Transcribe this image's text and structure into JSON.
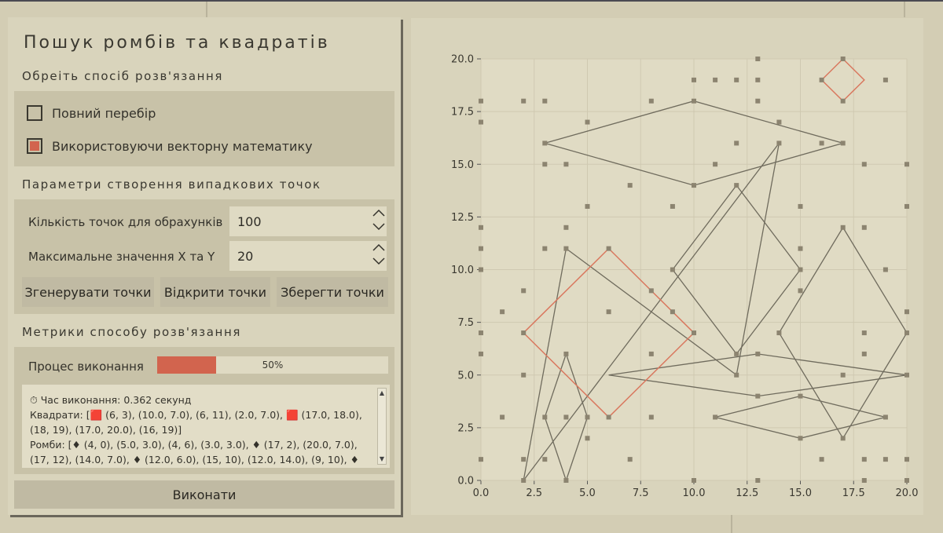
{
  "title": "Пошук ромбів та квадратів",
  "method": {
    "heading": "Обреіть спосіб розв'язання",
    "options": [
      {
        "label": "Повний перебір",
        "selected": false
      },
      {
        "label": "Використовуючи векторну математику",
        "selected": true
      }
    ]
  },
  "params": {
    "heading": "Параметри створення випадкових точок",
    "count_label": "Кількість точок для обрахунків",
    "count_value": "100",
    "max_label": "Максимальне значення X та Y",
    "max_value": "20",
    "generate_label": "Згенерувати точки",
    "open_label": "Відкрити точки",
    "save_label": "Зберегти точки"
  },
  "metrics": {
    "heading": "Метрики способу розв'язання",
    "progress_label": "Процес виконання",
    "progress_fraction": 0.5,
    "progress_text": "50%",
    "time_line": "⏱ Час виконання: 0.362 секунд",
    "squares_line": "Квадрати: [🟥 (6, 3), (10.0, 7.0), (6, 11), (2.0, 7.0), 🟥 (17.0, 18.0), (18, 19), (17.0, 20.0), (16, 19)]",
    "rhombs_line": "Ромби: [♦ (4, 0), (5.0, 3.0), (4, 6), (3.0, 3.0), ♦ (17, 2), (20.0, 7.0), (17, 12), (14.0, 7.0), ♦ (12.0, 6.0), (15, 10), (12.0, 14.0), (9, 10), ♦ (10.0"
  },
  "execute_label": "Виконати",
  "colors": {
    "accent": "#d2644e",
    "square_line": "#d9785f",
    "rhomb_line": "#6f6b5d",
    "point": "#8c8470"
  },
  "chart_data": {
    "type": "scatter",
    "xlim": [
      0,
      20
    ],
    "ylim": [
      0,
      20
    ],
    "xticks": [
      "0.0",
      "2.5",
      "5.0",
      "7.5",
      "10.0",
      "12.5",
      "15.0",
      "17.5",
      "20.0"
    ],
    "yticks": [
      "0.0",
      "2.5",
      "5.0",
      "7.5",
      "10.0",
      "12.5",
      "15.0",
      "17.5",
      "20.0"
    ],
    "grid": true,
    "points": [
      [
        0,
        18
      ],
      [
        0,
        17
      ],
      [
        0,
        12
      ],
      [
        0,
        11
      ],
      [
        0,
        10
      ],
      [
        0,
        7
      ],
      [
        0,
        6
      ],
      [
        0,
        1
      ],
      [
        1,
        8
      ],
      [
        1,
        3
      ],
      [
        2,
        18
      ],
      [
        2,
        9
      ],
      [
        2,
        7
      ],
      [
        2,
        5
      ],
      [
        2,
        1
      ],
      [
        2,
        0
      ],
      [
        3,
        18
      ],
      [
        3,
        16
      ],
      [
        3,
        15
      ],
      [
        3,
        11
      ],
      [
        3,
        3
      ],
      [
        3,
        1
      ],
      [
        4,
        15
      ],
      [
        4,
        12
      ],
      [
        4,
        11
      ],
      [
        4,
        6
      ],
      [
        4,
        3
      ],
      [
        4,
        0
      ],
      [
        5,
        17
      ],
      [
        5,
        13
      ],
      [
        5,
        3
      ],
      [
        5,
        2
      ],
      [
        6,
        11
      ],
      [
        6,
        8
      ],
      [
        6,
        3
      ],
      [
        7,
        14
      ],
      [
        7,
        1
      ],
      [
        8,
        18
      ],
      [
        8,
        9
      ],
      [
        8,
        6
      ],
      [
        8,
        3
      ],
      [
        9,
        13
      ],
      [
        9,
        10
      ],
      [
        9,
        8
      ],
      [
        10,
        19
      ],
      [
        10,
        18
      ],
      [
        10,
        14
      ],
      [
        10,
        7
      ],
      [
        10,
        0
      ],
      [
        11,
        19
      ],
      [
        11,
        15
      ],
      [
        11,
        3
      ],
      [
        12,
        19
      ],
      [
        12,
        16
      ],
      [
        12,
        14
      ],
      [
        12,
        6
      ],
      [
        12,
        5
      ],
      [
        13,
        20
      ],
      [
        13,
        19
      ],
      [
        13,
        18
      ],
      [
        13,
        6
      ],
      [
        13,
        4
      ],
      [
        13,
        0
      ],
      [
        14,
        17
      ],
      [
        14,
        16
      ],
      [
        14,
        7
      ],
      [
        15,
        13
      ],
      [
        15,
        11
      ],
      [
        15,
        10
      ],
      [
        15,
        9
      ],
      [
        15,
        4
      ],
      [
        15,
        2
      ],
      [
        16,
        19
      ],
      [
        16,
        16
      ],
      [
        16,
        1
      ],
      [
        17,
        20
      ],
      [
        17,
        18
      ],
      [
        17,
        16
      ],
      [
        17,
        12
      ],
      [
        17,
        5
      ],
      [
        17,
        2
      ],
      [
        18,
        15
      ],
      [
        18,
        12
      ],
      [
        18,
        7
      ],
      [
        18,
        6
      ],
      [
        18,
        1
      ],
      [
        18,
        0
      ],
      [
        19,
        19
      ],
      [
        19,
        10
      ],
      [
        19,
        3
      ],
      [
        19,
        1
      ],
      [
        20,
        15
      ],
      [
        20,
        13
      ],
      [
        20,
        8
      ],
      [
        20,
        7
      ],
      [
        20,
        5
      ],
      [
        20,
        1
      ],
      [
        20,
        0
      ]
    ],
    "squares": [
      [
        [
          6,
          3
        ],
        [
          10,
          7
        ],
        [
          6,
          11
        ],
        [
          2,
          7
        ]
      ],
      [
        [
          17,
          18
        ],
        [
          18,
          19
        ],
        [
          17,
          20
        ],
        [
          16,
          19
        ]
      ]
    ],
    "rhombs": [
      [
        [
          4,
          0
        ],
        [
          5,
          3
        ],
        [
          4,
          6
        ],
        [
          3,
          3
        ]
      ],
      [
        [
          17,
          2
        ],
        [
          20,
          7
        ],
        [
          17,
          12
        ],
        [
          14,
          7
        ]
      ],
      [
        [
          12,
          6
        ],
        [
          15,
          10
        ],
        [
          12,
          14
        ],
        [
          9,
          10
        ]
      ],
      [
        [
          3,
          16
        ],
        [
          10,
          18
        ],
        [
          17,
          16
        ],
        [
          10,
          14
        ]
      ],
      [
        [
          2,
          0
        ],
        [
          14,
          16
        ],
        [
          12,
          5
        ],
        [
          4,
          11
        ]
      ],
      [
        [
          6,
          5
        ],
        [
          13,
          6
        ],
        [
          20,
          5
        ],
        [
          13,
          4
        ]
      ],
      [
        [
          11,
          3
        ],
        [
          15,
          4
        ],
        [
          19,
          3
        ],
        [
          15,
          2
        ]
      ]
    ]
  }
}
